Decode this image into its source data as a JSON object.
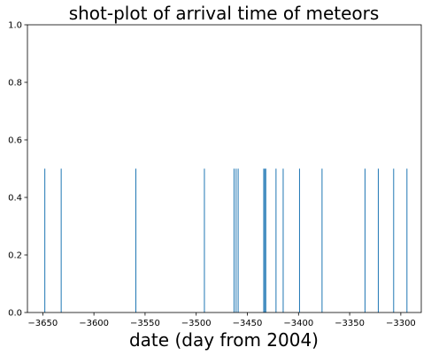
{
  "chart_data": {
    "type": "bar",
    "title": "shot-plot of arrival time of meteors",
    "xlabel": "date (day from 2004)",
    "ylabel": "",
    "xlim": [
      -3665,
      -3280
    ],
    "ylim": [
      0,
      1
    ],
    "xticks": [
      -3650,
      -3600,
      -3550,
      -3500,
      -3450,
      -3400,
      -3350,
      -3300
    ],
    "xtick_labels": [
      "−3650",
      "−3600",
      "−3550",
      "−3500",
      "−3450",
      "−3400",
      "−3350",
      "−3300"
    ],
    "yticks": [
      0.0,
      0.2,
      0.4,
      0.6,
      0.8,
      1.0
    ],
    "ytick_labels": [
      "0.0",
      "0.2",
      "0.4",
      "0.6",
      "0.8",
      "1.0"
    ],
    "grid": false,
    "bar_height": 0.5,
    "bar_color": "#1f77b4",
    "x": [
      -3648,
      -3632,
      -3559,
      -3492,
      -3463,
      -3461,
      -3459,
      -3434,
      -3433,
      -3432,
      -3422,
      -3415,
      -3399,
      -3377,
      -3335,
      -3322,
      -3307,
      -3294
    ]
  }
}
